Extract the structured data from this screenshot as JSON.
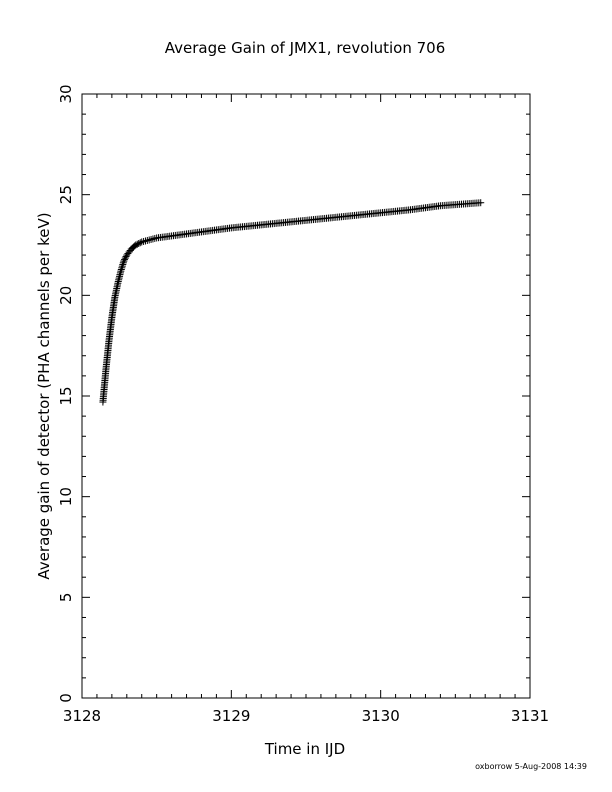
{
  "chart_data": {
    "type": "scatter",
    "title": "Average Gain of JMX1, revolution 706",
    "xlabel": "Time in IJD",
    "ylabel": "Average gain of detector (PHA channels per keV)",
    "xlim": [
      3128,
      3131
    ],
    "ylim": [
      0,
      30
    ],
    "x_ticks": [
      "3128",
      "3129",
      "3130",
      "3131"
    ],
    "y_ticks": [
      "0",
      "5",
      "10",
      "15",
      "20",
      "25",
      "30"
    ],
    "marker": "plus",
    "marker_color": "#000000",
    "grid": false,
    "points": [
      {
        "x": 3128.14,
        "y": 14.7
      },
      {
        "x": 3128.15,
        "y": 15.5
      },
      {
        "x": 3128.16,
        "y": 16.3
      },
      {
        "x": 3128.17,
        "y": 17.0
      },
      {
        "x": 3128.18,
        "y": 17.7
      },
      {
        "x": 3128.19,
        "y": 18.3
      },
      {
        "x": 3128.2,
        "y": 18.9
      },
      {
        "x": 3128.21,
        "y": 19.4
      },
      {
        "x": 3128.22,
        "y": 19.9
      },
      {
        "x": 3128.24,
        "y": 20.6
      },
      {
        "x": 3128.26,
        "y": 21.2
      },
      {
        "x": 3128.28,
        "y": 21.7
      },
      {
        "x": 3128.3,
        "y": 22.0
      },
      {
        "x": 3128.33,
        "y": 22.3
      },
      {
        "x": 3128.36,
        "y": 22.5
      },
      {
        "x": 3128.4,
        "y": 22.65
      },
      {
        "x": 3128.45,
        "y": 22.75
      },
      {
        "x": 3128.5,
        "y": 22.85
      },
      {
        "x": 3128.6,
        "y": 22.95
      },
      {
        "x": 3128.7,
        "y": 23.05
      },
      {
        "x": 3128.8,
        "y": 23.15
      },
      {
        "x": 3128.9,
        "y": 23.25
      },
      {
        "x": 3129.0,
        "y": 23.35
      },
      {
        "x": 3129.2,
        "y": 23.5
      },
      {
        "x": 3129.4,
        "y": 23.65
      },
      {
        "x": 3129.6,
        "y": 23.8
      },
      {
        "x": 3129.8,
        "y": 23.95
      },
      {
        "x": 3130.0,
        "y": 24.1
      },
      {
        "x": 3130.2,
        "y": 24.25
      },
      {
        "x": 3130.4,
        "y": 24.45
      },
      {
        "x": 3130.67,
        "y": 24.6
      }
    ]
  },
  "footer": {
    "stamp": "oxborrow   5-Aug-2008 14:39"
  }
}
